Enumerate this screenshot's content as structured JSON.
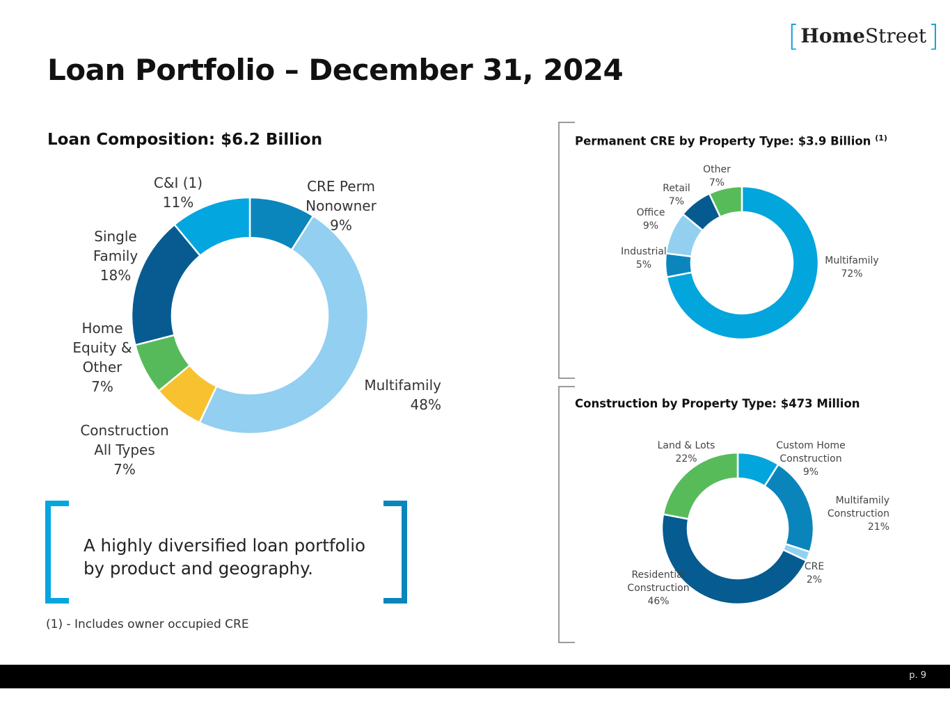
{
  "logo": {
    "bracket_left": "[",
    "bold": "Home",
    "regular": "Street",
    "bracket_right": "]"
  },
  "title": "Loan Portfolio – December 31, 2024",
  "callout": {
    "line1": "A highly diversified loan portfolio",
    "line2": "by product and geography."
  },
  "footnote": "(1) - Includes owner occupied CRE",
  "page_number": "p. 9",
  "colors": {
    "c_and_i": "#04a6df",
    "cre_perm": "#0a86bd",
    "multifamily_light": "#92cff0",
    "construction": "#f8c12f",
    "home_equity": "#57ba5a",
    "single_family": "#075b91",
    "perm_multifamily": "#03a5dd",
    "perm_industrial": "#0b86bd",
    "perm_office": "#93d0f0",
    "perm_retail": "#055b90",
    "perm_other": "#58bb5a",
    "constr_custom": "#03a5dd",
    "constr_multifamily": "#0a85bc",
    "constr_cre": "#93d0f0",
    "constr_residential": "#065b90",
    "constr_land": "#58bb5a",
    "bracket": "#04a6df",
    "bracket_dark": "#0a86bd",
    "divider": "#7a7a7a"
  },
  "chart_data": [
    {
      "type": "pie",
      "style": "donut",
      "title": "Loan Composition: $6.2 Billion",
      "start_value_offset": 0,
      "slices": [
        {
          "id": "cre_perm",
          "label_lines": [
            "CRE Perm",
            "Nonowner",
            "9%"
          ],
          "value": 9
        },
        {
          "id": "multifamily",
          "label_lines": [
            "Multifamily",
            "48%"
          ],
          "value": 48
        },
        {
          "id": "construction",
          "label_lines": [
            "Construction",
            "All Types",
            "7%"
          ],
          "value": 7
        },
        {
          "id": "home_equity",
          "label_lines": [
            "Home",
            "Equity &",
            "Other",
            "7%"
          ],
          "value": 7
        },
        {
          "id": "single_family",
          "label_lines": [
            "Single",
            "Family",
            "18%"
          ],
          "value": 18
        },
        {
          "id": "c_and_i",
          "label_lines": [
            "C&I (1)",
            "11%"
          ],
          "value": 11
        }
      ]
    },
    {
      "type": "pie",
      "style": "donut",
      "title": "Permanent CRE by Property Type: $3.9 Billion",
      "title_sup": "(1)",
      "slices": [
        {
          "id": "perm_multifamily",
          "label_lines": [
            "Multifamily",
            "72%"
          ],
          "value": 72
        },
        {
          "id": "perm_industrial",
          "label_lines": [
            "Industrial",
            "5%"
          ],
          "value": 5
        },
        {
          "id": "perm_office",
          "label_lines": [
            "Office",
            "9%"
          ],
          "value": 9
        },
        {
          "id": "perm_retail",
          "label_lines": [
            "Retail",
            "7%"
          ],
          "value": 7
        },
        {
          "id": "perm_other",
          "label_lines": [
            "Other",
            "7%"
          ],
          "value": 7
        }
      ]
    },
    {
      "type": "pie",
      "style": "donut",
      "title": "Construction by Property Type: $473 Million",
      "slices": [
        {
          "id": "constr_custom",
          "label_lines": [
            "Custom Home",
            "Construction",
            "9%"
          ],
          "value": 9
        },
        {
          "id": "constr_multifamily",
          "label_lines": [
            "Multifamily",
            "Construction",
            "21%"
          ],
          "value": 21
        },
        {
          "id": "constr_cre",
          "label_lines": [
            "CRE",
            "2%"
          ],
          "value": 2
        },
        {
          "id": "constr_residential",
          "label_lines": [
            "Residential",
            "Construction",
            "46%"
          ],
          "value": 46
        },
        {
          "id": "constr_land",
          "label_lines": [
            "Land & Lots",
            "22%"
          ],
          "value": 22
        }
      ]
    }
  ]
}
